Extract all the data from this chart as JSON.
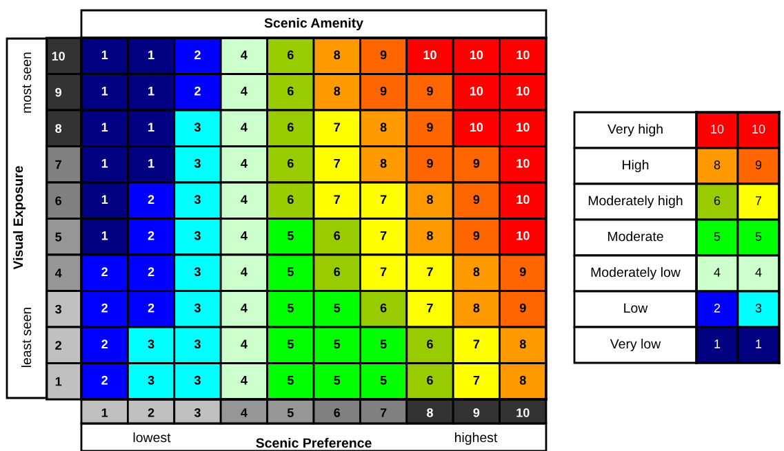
{
  "chart_data": [
    {
      "type": "heatmap",
      "data_labels": true,
      "title": "Scenic Amenity",
      "xlabel": "Scenic Preference",
      "ylabel": "Visual Exposure",
      "annotations": [
        "most seen",
        "least seen",
        "lowest",
        "highest"
      ],
      "categories": [
        "1",
        "2",
        "3",
        "4",
        "5",
        "6",
        "7",
        "8",
        "9",
        "10"
      ],
      "y_categories": [
        "10",
        "9",
        "8",
        "7",
        "6",
        "5",
        "4",
        "3",
        "2",
        "1"
      ],
      "colors": [
        "#000080",
        "#0000ff",
        "#00ffff",
        "#ccffcc",
        "#00ff00",
        "#99cc00",
        "#ffff00",
        "#ff9900",
        "#ff6600",
        "#ff0000"
      ],
      "cells": [
        [
          1,
          1,
          2,
          4,
          6,
          8,
          9,
          10,
          10,
          10
        ],
        [
          1,
          1,
          2,
          4,
          6,
          8,
          9,
          9,
          10,
          10
        ],
        [
          1,
          1,
          3,
          4,
          6,
          7,
          8,
          9,
          10,
          10
        ],
        [
          1,
          1,
          3,
          4,
          6,
          7,
          8,
          9,
          9,
          10
        ],
        [
          1,
          2,
          3,
          4,
          6,
          7,
          7,
          8,
          9,
          10
        ],
        [
          1,
          2,
          3,
          4,
          5,
          6,
          7,
          8,
          9,
          10
        ],
        [
          2,
          2,
          3,
          4,
          5,
          6,
          7,
          7,
          8,
          9
        ],
        [
          2,
          2,
          3,
          4,
          5,
          5,
          6,
          7,
          8,
          9
        ],
        [
          2,
          3,
          3,
          4,
          5,
          5,
          5,
          6,
          7,
          8
        ],
        [
          2,
          3,
          3,
          4,
          5,
          5,
          5,
          6,
          7,
          8
        ]
      ]
    },
    {
      "type": "heatmap",
      "data_labels": true,
      "categories": [
        null,
        null
      ],
      "y_categories": [
        "Very high",
        "High",
        "Moderately high",
        "Moderate",
        "Moderately low",
        "Low",
        "Very low"
      ],
      "colors": [
        "#000080",
        "#0000ff",
        "#00ffff",
        "#ccffcc",
        "#00ff00",
        "#99cc00",
        "#ffff00",
        "#ff9900",
        "#ff6600",
        "#ff0000"
      ],
      "cells": [
        [
          10,
          10
        ],
        [
          8,
          9
        ],
        [
          6,
          7
        ],
        [
          5,
          5
        ],
        [
          4,
          4
        ],
        [
          2,
          3
        ],
        [
          1,
          1
        ]
      ]
    }
  ]
}
